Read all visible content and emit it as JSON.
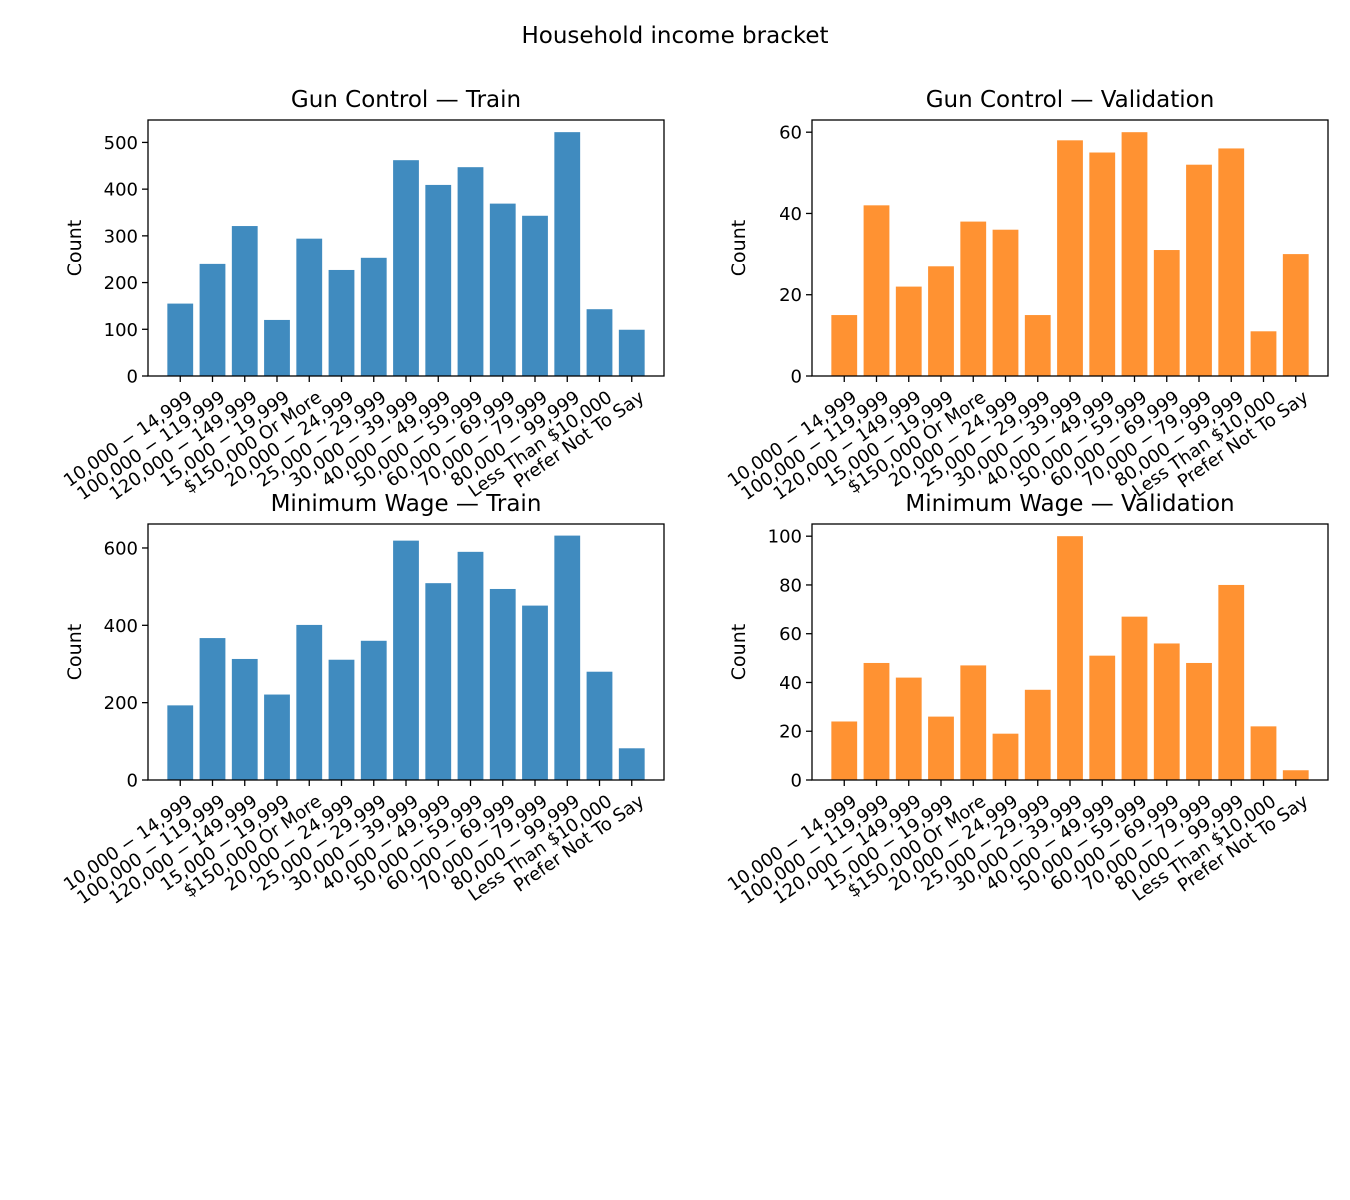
{
  "figure": {
    "title": "Household income bracket",
    "colors": {
      "train": "#1f77b4",
      "validation": "#ff7f0e"
    }
  },
  "chart_data": [
    {
      "type": "bar",
      "title": "Gun Control — Train",
      "xlabel": "",
      "ylabel": "Count",
      "ylim": [
        0,
        548
      ],
      "yticks": [
        0,
        100,
        200,
        300,
        400,
        500
      ],
      "color": "#1f77b4",
      "categories": [
        "$10,000-$14,999",
        "$100,000-$119,999",
        "$120,000-$149,999",
        "$15,000-$19,999",
        "$150,000 Or More",
        "$20,000-$24,999",
        "$25,000-$29,999",
        "$30,000-$39,999",
        "$40,000-$49,999",
        "$50,000-$59,999",
        "$60,000-$69,999",
        "$70,000-$79,999",
        "$80,000-$99,999",
        "Less Than $10,000",
        "Prefer Not To Say"
      ],
      "tick_labels": [
        "10,000 − 14,999",
        "100,000 − 119,999",
        "120,000 − 149,999",
        "15,000 − 19,999",
        "$150,000 Or More",
        "20,000 − 24,999",
        "25,000 − 29,999",
        "30,000 − 39,999",
        "40,000 − 49,999",
        "50,000 − 59,999",
        "60,000 − 69,999",
        "70,000 − 79,999",
        "80,000 − 99,999",
        "Less Than $10,000",
        "Prefer Not To Say"
      ],
      "values": [
        155,
        240,
        321,
        120,
        294,
        227,
        253,
        462,
        409,
        447,
        369,
        343,
        522,
        143,
        99
      ]
    },
    {
      "type": "bar",
      "title": "Gun Control — Validation",
      "xlabel": "",
      "ylabel": "Count",
      "ylim": [
        0,
        63
      ],
      "yticks": [
        0,
        20,
        40,
        60
      ],
      "color": "#ff7f0e",
      "categories": [
        "$10,000-$14,999",
        "$100,000-$119,999",
        "$120,000-$149,999",
        "$15,000-$19,999",
        "$150,000 Or More",
        "$20,000-$24,999",
        "$25,000-$29,999",
        "$30,000-$39,999",
        "$40,000-$49,999",
        "$50,000-$59,999",
        "$60,000-$69,999",
        "$70,000-$79,999",
        "$80,000-$99,999",
        "Less Than $10,000",
        "Prefer Not To Say"
      ],
      "tick_labels": [
        "10,000 − 14,999",
        "100,000 − 119,999",
        "120,000 − 149,999",
        "15,000 − 19,999",
        "$150,000 Or More",
        "20,000 − 24,999",
        "25,000 − 29,999",
        "30,000 − 39,999",
        "40,000 − 49,999",
        "50,000 − 59,999",
        "60,000 − 69,999",
        "70,000 − 79,999",
        "80,000 − 99,999",
        "Less Than $10,000",
        "Prefer Not To Say"
      ],
      "values": [
        15,
        42,
        22,
        27,
        38,
        36,
        15,
        58,
        55,
        60,
        31,
        52,
        56,
        11,
        30
      ]
    },
    {
      "type": "bar",
      "title": "Minimum Wage — Train",
      "xlabel": "",
      "ylabel": "Count",
      "ylim": [
        0,
        662
      ],
      "yticks": [
        0,
        200,
        400,
        600
      ],
      "color": "#1f77b4",
      "categories": [
        "$10,000-$14,999",
        "$100,000-$119,999",
        "$120,000-$149,999",
        "$15,000-$19,999",
        "$150,000 Or More",
        "$20,000-$24,999",
        "$25,000-$29,999",
        "$30,000-$39,999",
        "$40,000-$49,999",
        "$50,000-$59,999",
        "$60,000-$69,999",
        "$70,000-$79,999",
        "$80,000-$99,999",
        "Less Than $10,000",
        "Prefer Not To Say"
      ],
      "tick_labels": [
        "10,000 − 14,999",
        "100,000 − 119,999",
        "120,000 − 149,999",
        "15,000 − 19,999",
        "$150,000 Or More",
        "20,000 − 24,999",
        "25,000 − 29,999",
        "30,000 − 39,999",
        "40,000 − 49,999",
        "50,000 − 59,999",
        "60,000 − 69,999",
        "70,000 − 79,999",
        "80,000 − 99,999",
        "Less Than $10,000",
        "Prefer Not To Say"
      ],
      "values": [
        193,
        367,
        313,
        221,
        401,
        311,
        360,
        619,
        509,
        590,
        494,
        451,
        632,
        280,
        82
      ]
    },
    {
      "type": "bar",
      "title": "Minimum Wage — Validation",
      "xlabel": "",
      "ylabel": "Count",
      "ylim": [
        0,
        105
      ],
      "yticks": [
        0,
        20,
        40,
        60,
        80,
        100
      ],
      "color": "#ff7f0e",
      "categories": [
        "$10,000-$14,999",
        "$100,000-$119,999",
        "$120,000-$149,999",
        "$15,000-$19,999",
        "$150,000 Or More",
        "$20,000-$24,999",
        "$25,000-$29,999",
        "$30,000-$39,999",
        "$40,000-$49,999",
        "$50,000-$59,999",
        "$60,000-$69,999",
        "$70,000-$79,999",
        "$80,000-$99,999",
        "Less Than $10,000",
        "Prefer Not To Say"
      ],
      "tick_labels": [
        "10,000 − 14,999",
        "100,000 − 119,999",
        "120,000 − 149,999",
        "15,000 − 19,999",
        "$150,000 Or More",
        "20,000 − 24,999",
        "25,000 − 29,999",
        "30,000 − 39,999",
        "40,000 − 49,999",
        "50,000 − 59,999",
        "60,000 − 69,999",
        "70,000 − 79,999",
        "80,000 − 99,999",
        "Less Than $10,000",
        "Prefer Not To Say"
      ],
      "values": [
        24,
        48,
        42,
        26,
        47,
        19,
        37,
        100,
        51,
        67,
        56,
        48,
        80,
        22,
        4
      ]
    }
  ]
}
